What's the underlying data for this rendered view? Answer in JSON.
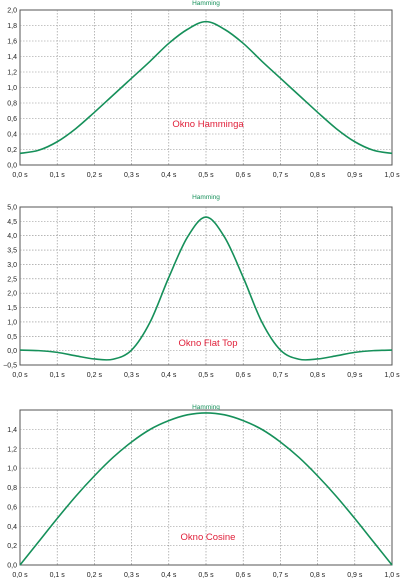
{
  "chart_data": [
    {
      "type": "line",
      "title": "Hamming",
      "annotation": "Okno Hamminga",
      "xlim": [
        0,
        1
      ],
      "ylim": [
        0,
        2
      ],
      "x_ticks": [
        "0,0 s",
        "0,1 s",
        "0,2 s",
        "0,3 s",
        "0,4 s",
        "0,5 s",
        "0,6 s",
        "0,7 s",
        "0,8 s",
        "0,9 s",
        "1,0 s"
      ],
      "y_ticks": [
        "0,0",
        "0,2",
        "0,4",
        "0,6",
        "0,8",
        "1,0",
        "1,2",
        "1,4",
        "1,6",
        "1,8",
        "2,0"
      ],
      "grid": true,
      "line_color": "#16905a",
      "annotation_color": "#e0203a",
      "series": [
        {
          "x": [
            0,
            0.05,
            0.1,
            0.15,
            0.2,
            0.25,
            0.3,
            0.35,
            0.4,
            0.45,
            0.5,
            0.55,
            0.6,
            0.65,
            0.7,
            0.75,
            0.8,
            0.85,
            0.9,
            0.95,
            1.0
          ],
          "y": [
            0.15,
            0.19,
            0.3,
            0.47,
            0.68,
            0.9,
            1.12,
            1.34,
            1.57,
            1.75,
            1.85,
            1.75,
            1.57,
            1.34,
            1.12,
            0.9,
            0.68,
            0.47,
            0.3,
            0.19,
            0.15
          ]
        }
      ]
    },
    {
      "type": "line",
      "title": "Hamming",
      "annotation": "Okno Flat Top",
      "xlim": [
        0,
        1
      ],
      "ylim": [
        -0.5,
        5
      ],
      "x_ticks": [
        "0,0 s",
        "0,1 s",
        "0,2 s",
        "0,3 s",
        "0,4 s",
        "0,5 s",
        "0,6 s",
        "0,7 s",
        "0,8 s",
        "0,9 s",
        "1,0 s"
      ],
      "y_ticks": [
        "−0,5",
        "0,0",
        "0,5",
        "1,0",
        "1,5",
        "2,0",
        "2,5",
        "3,0",
        "3,5",
        "4,0",
        "4,5",
        "5,0"
      ],
      "grid": true,
      "line_color": "#16905a",
      "annotation_color": "#e0203a",
      "series": [
        {
          "x": [
            0,
            0.05,
            0.1,
            0.15,
            0.2,
            0.25,
            0.3,
            0.35,
            0.4,
            0.45,
            0.5,
            0.55,
            0.6,
            0.65,
            0.7,
            0.75,
            0.8,
            0.85,
            0.9,
            0.95,
            1.0
          ],
          "y": [
            0.02,
            0.0,
            -0.06,
            -0.18,
            -0.29,
            -0.3,
            0.02,
            1.0,
            2.55,
            3.95,
            4.65,
            3.95,
            2.55,
            1.0,
            0.02,
            -0.3,
            -0.29,
            -0.18,
            -0.06,
            0.0,
            0.02
          ]
        }
      ]
    },
    {
      "type": "line",
      "title": "Hamming",
      "annotation": "Okno Cosine",
      "xlim": [
        0,
        1
      ],
      "ylim": [
        0,
        1.6
      ],
      "x_ticks": [
        "0,0 s",
        "0,1 s",
        "0,2 s",
        "0,3 s",
        "0,4 s",
        "0,5 s",
        "0,6 s",
        "0,7 s",
        "0,8 s",
        "0,9 s",
        "1,0 s"
      ],
      "y_ticks": [
        "0,0",
        "0,2",
        "0,4",
        "0,6",
        "0,8",
        "1,0",
        "1,2",
        "1,4"
      ],
      "grid": true,
      "line_color": "#16905a",
      "annotation_color": "#e0203a",
      "series": [
        {
          "x": [
            0,
            0.05,
            0.1,
            0.15,
            0.2,
            0.25,
            0.3,
            0.35,
            0.4,
            0.45,
            0.5,
            0.55,
            0.6,
            0.65,
            0.7,
            0.75,
            0.8,
            0.85,
            0.9,
            0.95,
            1.0
          ],
          "y": [
            0.0,
            0.24,
            0.48,
            0.71,
            0.92,
            1.11,
            1.27,
            1.4,
            1.49,
            1.55,
            1.57,
            1.55,
            1.49,
            1.4,
            1.27,
            1.11,
            0.92,
            0.71,
            0.48,
            0.24,
            0.0
          ]
        }
      ]
    }
  ]
}
